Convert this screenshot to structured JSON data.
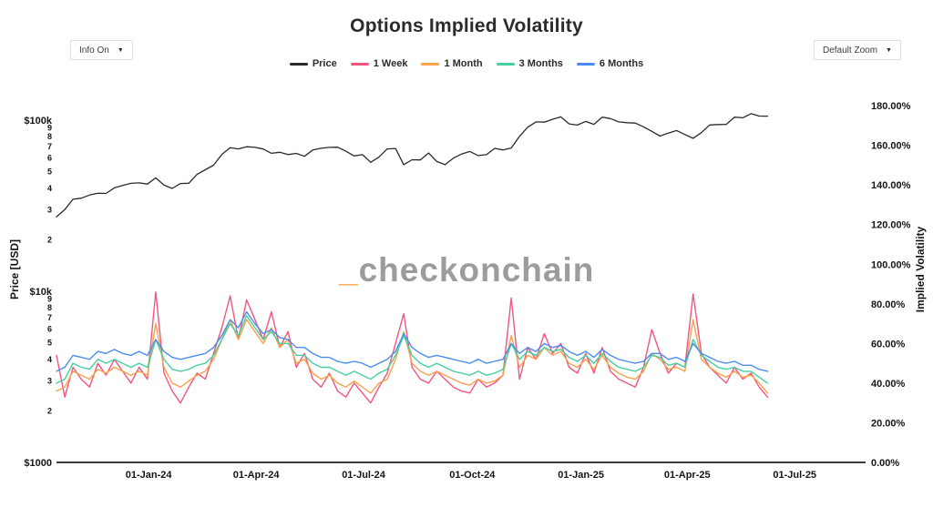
{
  "header": {
    "title": "Options Implied Volatility"
  },
  "controls": {
    "info_button": {
      "label": "Info On",
      "caret": "▼"
    },
    "zoom_button": {
      "label": "Default Zoom",
      "caret": "▼"
    }
  },
  "watermark": {
    "underscore": "_",
    "text": "checkonchain",
    "underscore_color": "#f8a94b",
    "text_color": "#9c9c9c"
  },
  "chart_data": {
    "type": "line",
    "title": "Options Implied Volatility",
    "x_start_day": 0,
    "x_step_days": 7,
    "x_range_days": [
      0,
      685
    ],
    "x_ticks": [
      {
        "day": 78,
        "label": "01-Jan-24"
      },
      {
        "day": 169,
        "label": "01-Apr-24"
      },
      {
        "day": 260,
        "label": "01-Jul-24"
      },
      {
        "day": 352,
        "label": "01-Oct-24"
      },
      {
        "day": 444,
        "label": "01-Jan-25"
      },
      {
        "day": 534,
        "label": "01-Apr-25"
      },
      {
        "day": 625,
        "label": "01-Jul-25"
      }
    ],
    "y_left": {
      "title": "Price [USD]",
      "scale": "log",
      "min": 1000,
      "max": 147900,
      "major_ticks": [
        {
          "value": 100000,
          "label": "$100k"
        },
        {
          "value": 10000,
          "label": "$10k"
        },
        {
          "value": 1000,
          "label": "$1000"
        }
      ],
      "minor_tick_bases": [
        10000,
        1000
      ],
      "minor_tick_digits": [
        9,
        8,
        7,
        6,
        5,
        4,
        3,
        2
      ]
    },
    "y_right": {
      "title": "Implied Volatility",
      "scale": "linear",
      "min": 0,
      "max": 187.4,
      "ticks": [
        {
          "value": 0,
          "label": "0.00%"
        },
        {
          "value": 20,
          "label": "20.00%"
        },
        {
          "value": 40,
          "label": "40.00%"
        },
        {
          "value": 60,
          "label": "60.00%"
        },
        {
          "value": 80,
          "label": "80.00%"
        },
        {
          "value": 100,
          "label": "100.00%"
        },
        {
          "value": 120,
          "label": "120.00%"
        },
        {
          "value": 140,
          "label": "140.00%"
        },
        {
          "value": 160,
          "label": "160.00%"
        },
        {
          "value": 180,
          "label": "180.00%"
        }
      ]
    },
    "legend_position": "top-center",
    "grid": false,
    "series": [
      {
        "name": "Price",
        "axis": "left",
        "color": "#2a2a2a",
        "width": 1.3,
        "values": [
          27200,
          30000,
          34500,
          35000,
          36500,
          37400,
          37300,
          40200,
          41500,
          42700,
          43000,
          42300,
          46000,
          41700,
          39900,
          42600,
          42800,
          48200,
          51300,
          54500,
          63100,
          69000,
          67900,
          69900,
          69300,
          67800,
          64000,
          64900,
          62900,
          63900,
          61500,
          66900,
          68500,
          69300,
          69500,
          65800,
          61800,
          62800,
          56700,
          60800,
          67900,
          68300,
          54900,
          58700,
          58500,
          64200,
          57300,
          54900,
          60000,
          63400,
          65600,
          62100,
          62800,
          68400,
          67000,
          68700,
          80400,
          91000,
          97700,
          97300,
          101200,
          104400,
          95100,
          93500,
          98300,
          94500,
          104100,
          102100,
          97700,
          96600,
          96100,
          91400,
          86000,
          80700,
          84000,
          86900,
          82400,
          78200,
          84500,
          93700,
          94200,
          94300,
          104100,
          103200,
          109000,
          105600,
          105500
        ]
      },
      {
        "name": "1 Week",
        "axis": "right",
        "color": "#f2557f",
        "width": 1.4,
        "values": [
          54,
          33,
          48,
          42,
          38,
          50,
          44,
          52,
          46,
          40,
          48,
          42,
          86,
          45,
          36,
          30,
          38,
          45,
          42,
          55,
          68,
          84,
          62,
          82,
          72,
          62,
          76,
          58,
          66,
          48,
          55,
          42,
          38,
          45,
          36,
          33,
          40,
          35,
          30,
          38,
          45,
          60,
          75,
          48,
          42,
          40,
          46,
          42,
          38,
          36,
          35,
          42,
          38,
          40,
          44,
          83,
          42,
          58,
          52,
          65,
          55,
          60,
          48,
          45,
          55,
          45,
          58,
          46,
          42,
          40,
          38,
          48,
          67,
          55,
          45,
          50,
          48,
          85,
          55,
          48,
          44,
          40,
          48,
          42,
          45,
          38,
          33
        ]
      },
      {
        "name": "1 Month",
        "axis": "right",
        "color": "#f7a24b",
        "width": 1.4,
        "values": [
          36,
          38,
          46,
          44,
          42,
          47,
          45,
          48,
          46,
          44,
          46,
          44,
          70,
          48,
          40,
          38,
          41,
          44,
          46,
          52,
          62,
          72,
          62,
          72,
          66,
          60,
          68,
          58,
          62,
          50,
          52,
          45,
          42,
          44,
          40,
          38,
          41,
          38,
          35,
          40,
          42,
          52,
          66,
          50,
          46,
          44,
          46,
          44,
          42,
          40,
          39,
          42,
          40,
          41,
          44,
          64,
          48,
          54,
          52,
          58,
          54,
          56,
          50,
          48,
          52,
          47,
          54,
          48,
          45,
          43,
          42,
          46,
          55,
          52,
          47,
          48,
          46,
          72,
          52,
          48,
          45,
          43,
          46,
          43,
          44,
          40,
          35
        ]
      },
      {
        "name": "3 Months",
        "axis": "right",
        "color": "#45d0a1",
        "width": 1.4,
        "values": [
          40,
          42,
          50,
          48,
          47,
          52,
          50,
          52,
          50,
          48,
          50,
          48,
          62,
          52,
          47,
          46,
          47,
          49,
          50,
          54,
          62,
          70,
          64,
          74,
          68,
          62,
          66,
          60,
          60,
          54,
          54,
          50,
          48,
          48,
          46,
          44,
          46,
          44,
          42,
          45,
          47,
          54,
          64,
          54,
          50,
          48,
          50,
          48,
          46,
          45,
          44,
          46,
          44,
          45,
          47,
          60,
          52,
          56,
          54,
          58,
          56,
          57,
          53,
          51,
          54,
          50,
          55,
          51,
          48,
          47,
          46,
          48,
          54,
          53,
          49,
          50,
          48,
          62,
          54,
          51,
          48,
          47,
          48,
          46,
          46,
          43,
          40
        ]
      },
      {
        "name": "6 Months",
        "axis": "right",
        "color": "#4a8df0",
        "width": 1.4,
        "values": [
          46,
          48,
          54,
          53,
          52,
          56,
          55,
          57,
          55,
          54,
          56,
          54,
          62,
          56,
          53,
          52,
          53,
          54,
          55,
          58,
          64,
          72,
          68,
          76,
          70,
          65,
          67,
          63,
          62,
          58,
          58,
          55,
          53,
          53,
          51,
          50,
          51,
          50,
          48,
          50,
          52,
          56,
          65,
          58,
          55,
          53,
          54,
          53,
          52,
          51,
          50,
          52,
          50,
          51,
          52,
          60,
          55,
          58,
          56,
          60,
          58,
          59,
          56,
          54,
          56,
          53,
          57,
          54,
          52,
          51,
          50,
          51,
          55,
          55,
          52,
          53,
          51,
          60,
          55,
          53,
          51,
          50,
          51,
          49,
          49,
          47,
          46
        ]
      }
    ]
  }
}
